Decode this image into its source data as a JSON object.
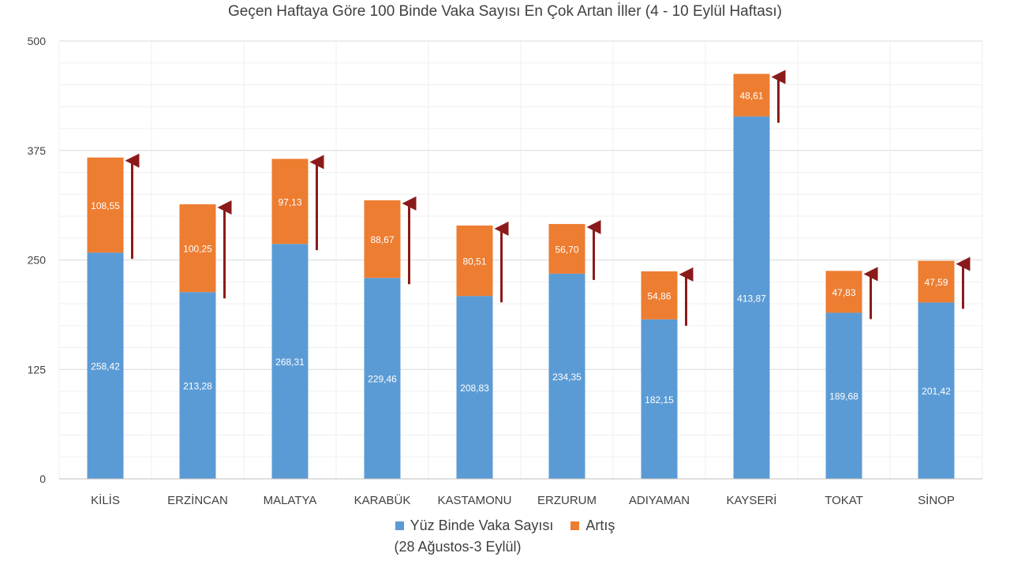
{
  "chart_data": {
    "type": "bar",
    "stacked": true,
    "title": "Geçen Haftaya Göre 100 Binde Vaka Sayısı En Çok Artan İller (4 - 10 Eylül Haftası)",
    "categories": [
      "KİLİS",
      "ERZİNCAN",
      "MALATYA",
      "KARABÜK",
      "KASTAMONU",
      "ERZURUM",
      "ADIYAMAN",
      "KAYSERİ",
      "TOKAT",
      "SİNOP"
    ],
    "series": [
      {
        "name": "Yüz Binde Vaka Sayısı",
        "values": [
          258.42,
          213.28,
          268.31,
          229.46,
          208.83,
          234.35,
          182.15,
          413.87,
          189.68,
          201.42
        ],
        "labels": [
          "258,42",
          "213,28",
          "268,31",
          "229,46",
          "208,83",
          "234,35",
          "182,15",
          "413,87",
          "189,68",
          "201,42"
        ],
        "color": "#5b9bd5"
      },
      {
        "name": "Artış",
        "values": [
          108.55,
          100.25,
          97.13,
          88.67,
          80.51,
          56.7,
          54.86,
          48.61,
          47.83,
          47.59
        ],
        "labels": [
          "108,55",
          "100,25",
          "97,13",
          "88,67",
          "80,51",
          "56,70",
          "54,86",
          "48,61",
          "47,83",
          "47,59"
        ],
        "color": "#ed7d31"
      }
    ],
    "ylim": [
      0,
      500
    ],
    "yticks": [
      0,
      125,
      250,
      375,
      500
    ],
    "grid": true,
    "legend_position": "bottom",
    "legend_note": "(28 Ağustos-3 Eylül)",
    "arrow_color": "#8b1a1a",
    "increase_arrows": true
  }
}
